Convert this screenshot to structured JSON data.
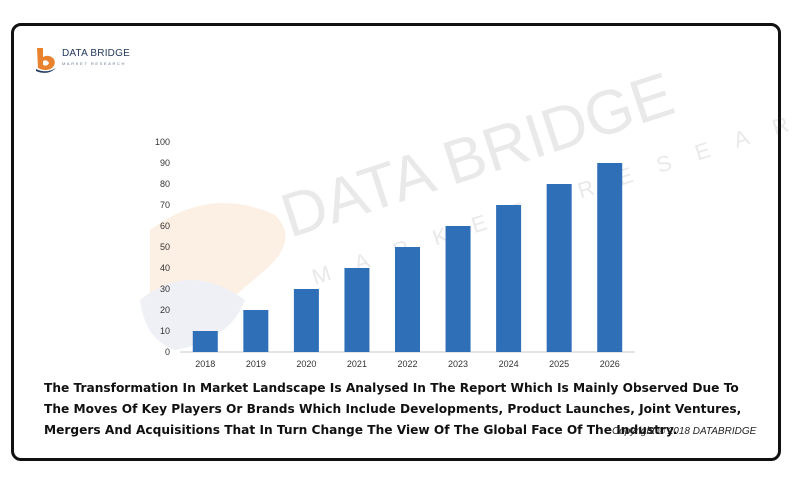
{
  "brand": {
    "name": "DATA BRIDGE",
    "sub": "MARKET RESEARCH",
    "watermark_main": "DATA BRIDGE",
    "watermark_sub": "MARKET RESEARCH",
    "bar_color": "#2e6fb7",
    "logo_orange": "#e8822e",
    "logo_navy": "#243a5e"
  },
  "chart_data": {
    "type": "bar",
    "categories": [
      "2018",
      "2019",
      "2020",
      "2021",
      "2022",
      "2023",
      "2024",
      "2025",
      "2026"
    ],
    "values": [
      10,
      20,
      30,
      40,
      50,
      60,
      70,
      80,
      90
    ],
    "ylim": [
      0,
      100
    ],
    "yticks": [
      "0",
      "10",
      "20",
      "30",
      "40",
      "50",
      "60",
      "70",
      "80",
      "90",
      "100"
    ],
    "title": "",
    "xlabel": "",
    "ylabel": "",
    "grid": false
  },
  "caption": "The Transformation In Market Landscape Is Analysed In The Report Which Is Mainly Observed Due To The Moves Of Key Players Or Brands Which Include Developments, Product Launches, Joint Ventures, Mergers And Acquisitions That In Turn Change The View Of The Global Face Of The Industry.",
  "copyright": "Copyright © 2018 DATABRIDGE"
}
